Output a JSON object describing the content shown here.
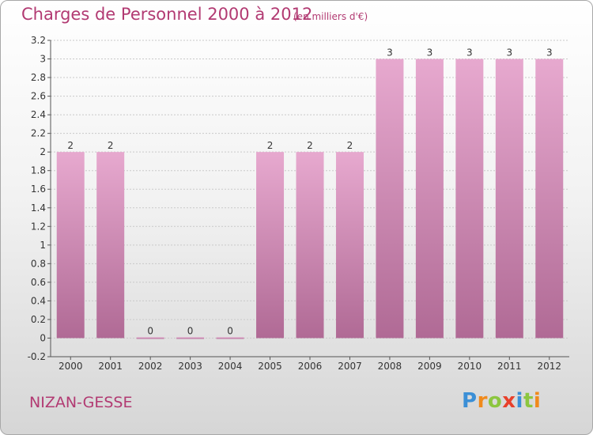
{
  "header": {
    "title": "Charges de Personnel 2000 à 2012",
    "subtitle": "(en milliers d'€)"
  },
  "footer": {
    "commune": "NIZAN-GESSE",
    "logo_letters": [
      "P",
      "r",
      "o",
      "x",
      "i",
      "t",
      "i"
    ],
    "logo_colors": [
      "#3b8fd6",
      "#f08a1c",
      "#8cc63f",
      "#e8402a",
      "#3b8fd6",
      "#8cc63f",
      "#f08a1c"
    ]
  },
  "colors": {
    "accent": "#b23a72",
    "bar_top": "#e7a9cf",
    "bar_bottom": "#b06a95",
    "grid": "#c9c9c9",
    "axis": "#555555"
  },
  "chart_data": {
    "type": "bar",
    "title": "Charges de Personnel 2000 à 2012",
    "subtitle": "(en milliers d'€)",
    "categories": [
      "2000",
      "2001",
      "2002",
      "2003",
      "2004",
      "2005",
      "2006",
      "2007",
      "2008",
      "2009",
      "2010",
      "2011",
      "2012"
    ],
    "values": [
      2,
      2,
      0,
      0,
      0,
      2,
      2,
      2,
      3,
      3,
      3,
      3,
      3
    ],
    "data_labels": [
      "2",
      "2",
      "0",
      "0",
      "0",
      "2",
      "2",
      "2",
      "3",
      "3",
      "3",
      "3",
      "3"
    ],
    "ylim": [
      -0.2,
      3.2
    ],
    "yticks": [
      -0.2,
      0,
      0.2,
      0.4,
      0.6,
      0.8,
      1,
      1.2,
      1.4,
      1.6,
      1.8,
      2,
      2.2,
      2.4,
      2.6,
      2.8,
      3,
      3.2
    ],
    "ytick_labels": [
      "-0.2",
      "0",
      "0.2",
      "0.4",
      "0.6",
      "0.8",
      "1",
      "1.2",
      "1.4",
      "1.6",
      "1.8",
      "2",
      "2.2",
      "2.4",
      "2.6",
      "2.8",
      "3",
      "3.2"
    ],
    "grid": true,
    "legend": "none"
  }
}
